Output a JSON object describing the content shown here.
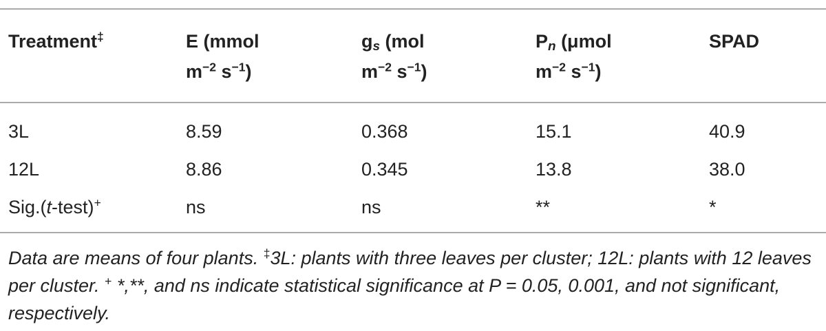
{
  "table": {
    "headers": [
      [
        "Treatment",
        "‡"
      ],
      [
        "E (mmol",
        "m",
        "−2",
        " s",
        "−1",
        ")"
      ],
      [
        "g",
        "s",
        " (mol",
        "m",
        "−2",
        " s",
        "−1",
        ")"
      ],
      [
        "P",
        "n",
        " (μmol",
        "m",
        "−2",
        " s",
        "−1",
        ")"
      ],
      [
        "SPAD"
      ]
    ],
    "rows": [
      [
        "3L",
        "8.59",
        "0.368",
        "15.1",
        "40.9"
      ],
      [
        "12L",
        "8.86",
        "0.345",
        "13.8",
        "38.0"
      ]
    ],
    "sig_row": {
      "label": [
        "Sig.(",
        "t",
        "-test)",
        "+"
      ],
      "cells": [
        "ns",
        "ns",
        "**",
        "*"
      ]
    }
  },
  "footnote": [
    "Data are means of four plants. ",
    "‡",
    "3L: plants with three leaves per cluster; 12L: plants with 12 leaves per cluster. ",
    "+",
    " *,**, and ns indicate statistical significance at P = 0.05, 0.001, and not significant, respectively."
  ]
}
